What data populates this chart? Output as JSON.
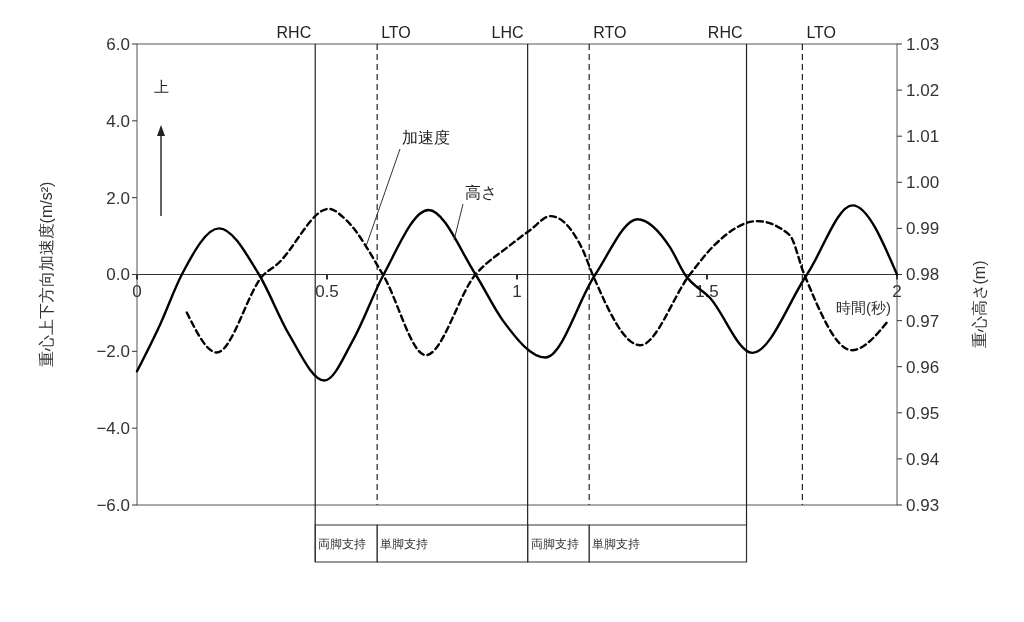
{
  "chart_data": {
    "type": "line",
    "xlabel": "時間(秒)",
    "ylabel": "重心上下方向加速度(m/s²)",
    "y2label": "重心高さ(m)",
    "xlim": [
      0,
      2
    ],
    "xticks": [
      0,
      0.5,
      1,
      1.5,
      2
    ],
    "ylim": [
      -6,
      6
    ],
    "yticks": [
      {
        "value": -6,
        "label": "−6.0"
      },
      {
        "value": -4,
        "label": "−4.0"
      },
      {
        "value": -2,
        "label": "−2.0"
      },
      {
        "value": 0,
        "label": "0.0"
      },
      {
        "value": 2,
        "label": "2.0"
      },
      {
        "value": 4,
        "label": "4.0"
      },
      {
        "value": 6,
        "label": "6.0"
      }
    ],
    "y2lim": [
      0.93,
      1.03
    ],
    "y2ticks": [
      0.93,
      0.94,
      0.95,
      0.96,
      0.97,
      0.98,
      0.99,
      {
        "value": 1,
        "label": "1.00"
      },
      1.01,
      1.02,
      1.03
    ],
    "grid": false,
    "series": [
      {
        "name": "高さ",
        "axis": "y2",
        "color": "#000000",
        "line_style": "solid",
        "x": [
          0,
          0.06,
          0.118,
          0.216,
          0.321,
          0.4,
          0.493,
          0.57,
          0.649,
          0.767,
          0.891,
          0.963,
          1.075,
          1.206,
          1.317,
          1.402,
          1.442,
          1.507,
          1.619,
          1.763,
          1.883,
          2
        ],
        "values": [
          0.959,
          0.969,
          0.98,
          0.99,
          0.98,
          0.967,
          0.957,
          0.966,
          0.98,
          0.994,
          0.98,
          0.97,
          0.962,
          0.98,
          0.992,
          0.986,
          0.98,
          0.975,
          0.963,
          0.98,
          0.995,
          0.98
        ]
      },
      {
        "name": "加速度",
        "axis": "y",
        "color": "#000000",
        "line_style": "dashed",
        "x": [
          0.131,
          0.21,
          0.334,
          0.367,
          0.505,
          0.55,
          0.647,
          0.76,
          0.891,
          0.983,
          1.035,
          1.088,
          1.173,
          1.199,
          1.324,
          1.455,
          1.52,
          1.632,
          1.717,
          1.756,
          1.881,
          1.979
        ],
        "values": [
          -0.99,
          -2.03,
          0,
          0.25,
          1.71,
          1.42,
          0,
          -2.1,
          0,
          0.77,
          1.16,
          1.52,
          0.64,
          0,
          -1.84,
          0,
          0.77,
          1.39,
          1.03,
          0,
          -1.97,
          -1.18
        ]
      }
    ],
    "ref_lines": [
      {
        "axis": "x",
        "value": 0.469,
        "label": "RHC",
        "line_style": "solid"
      },
      {
        "axis": "x",
        "value": 0.632,
        "label": "LTO",
        "line_style": "dashed"
      },
      {
        "axis": "x",
        "value": 1.028,
        "label": "LHC",
        "line_style": "solid"
      },
      {
        "axis": "x",
        "value": 1.19,
        "label": "RTO",
        "line_style": "dashed"
      },
      {
        "axis": "x",
        "value": 1.604,
        "label": "RHC",
        "line_style": "solid"
      },
      {
        "axis": "x",
        "value": 1.751,
        "label": "LTO",
        "line_style": "dashed"
      }
    ],
    "annotations": [
      "上",
      "両脚支持",
      "単脚支持",
      "両脚支持",
      "単脚支持"
    ]
  }
}
